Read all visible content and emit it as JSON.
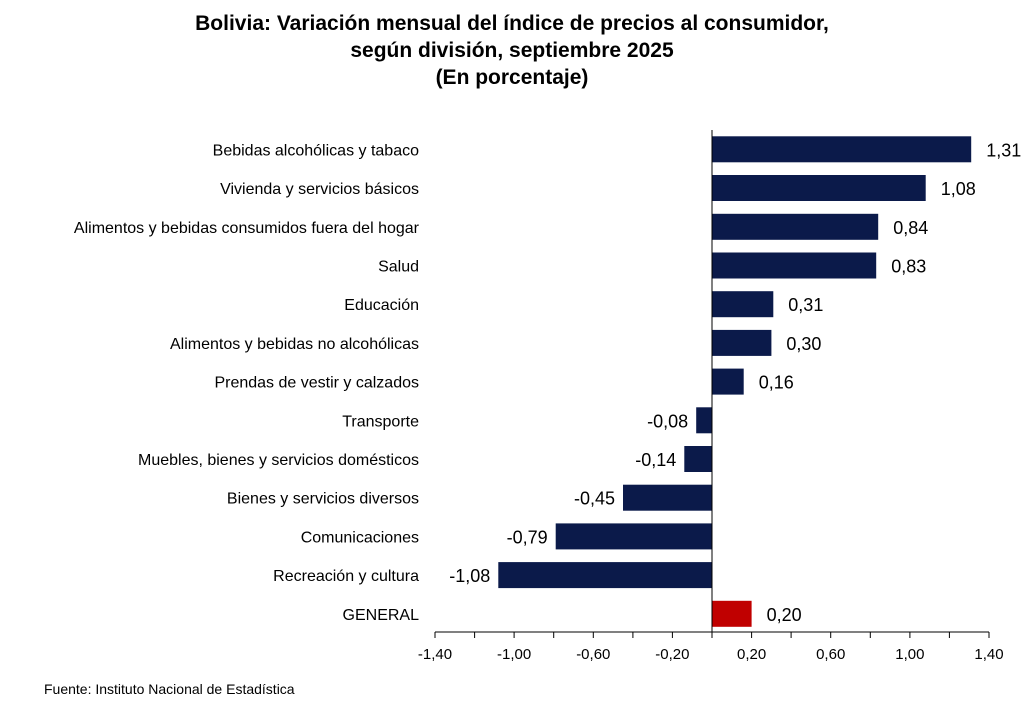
{
  "header": {
    "title_line1": "Bolivia: Variación mensual del índice de precios al consumidor,",
    "title_line2": "según división, septiembre 2025",
    "title_line3": "(En porcentaje)"
  },
  "source": "Fuente: Instituto Nacional de Estadística",
  "chart_data": {
    "type": "bar",
    "orientation": "horizontal",
    "title": "Bolivia: Variación mensual del índice de precios al consumidor, según división, septiembre 2025 (En porcentaje)",
    "categories": [
      "Bebidas alcohólicas y tabaco",
      "Vivienda y servicios básicos",
      "Alimentos y bebidas consumidos fuera del hogar",
      "Salud",
      "Educación",
      "Alimentos y bebidas no alcohólicas",
      "Prendas de vestir y calzados",
      "Transporte",
      "Muebles, bienes y servicios domésticos",
      "Bienes y servicios diversos",
      "Comunicaciones",
      "Recreación y cultura",
      "GENERAL"
    ],
    "values": [
      1.31,
      1.08,
      0.84,
      0.83,
      0.31,
      0.3,
      0.16,
      -0.08,
      -0.14,
      -0.45,
      -0.79,
      -1.08,
      0.2
    ],
    "value_labels": [
      "1,31",
      "1,08",
      "0,84",
      "0,83",
      "0,31",
      "0,30",
      "0,16",
      "-0,08",
      "-0,14",
      "-0,45",
      "-0,79",
      "-1,08",
      "0,20"
    ],
    "xlim": [
      -1.4,
      1.4
    ],
    "x_ticks": [
      -1.4,
      -1.0,
      -0.6,
      -0.2,
      0.2,
      0.6,
      1.0,
      1.4
    ],
    "x_tick_labels": [
      "-1,40",
      "-1,00",
      "-0,60",
      "-0,20",
      "0,20",
      "0,60",
      "1,00",
      "1,40"
    ],
    "xlabel": "",
    "ylabel": "",
    "grid": false,
    "legend": "none",
    "colors": {
      "bar": "#0b1a4a",
      "highlight": "#c00000",
      "axis": "#000000"
    },
    "highlight_category": "GENERAL"
  }
}
